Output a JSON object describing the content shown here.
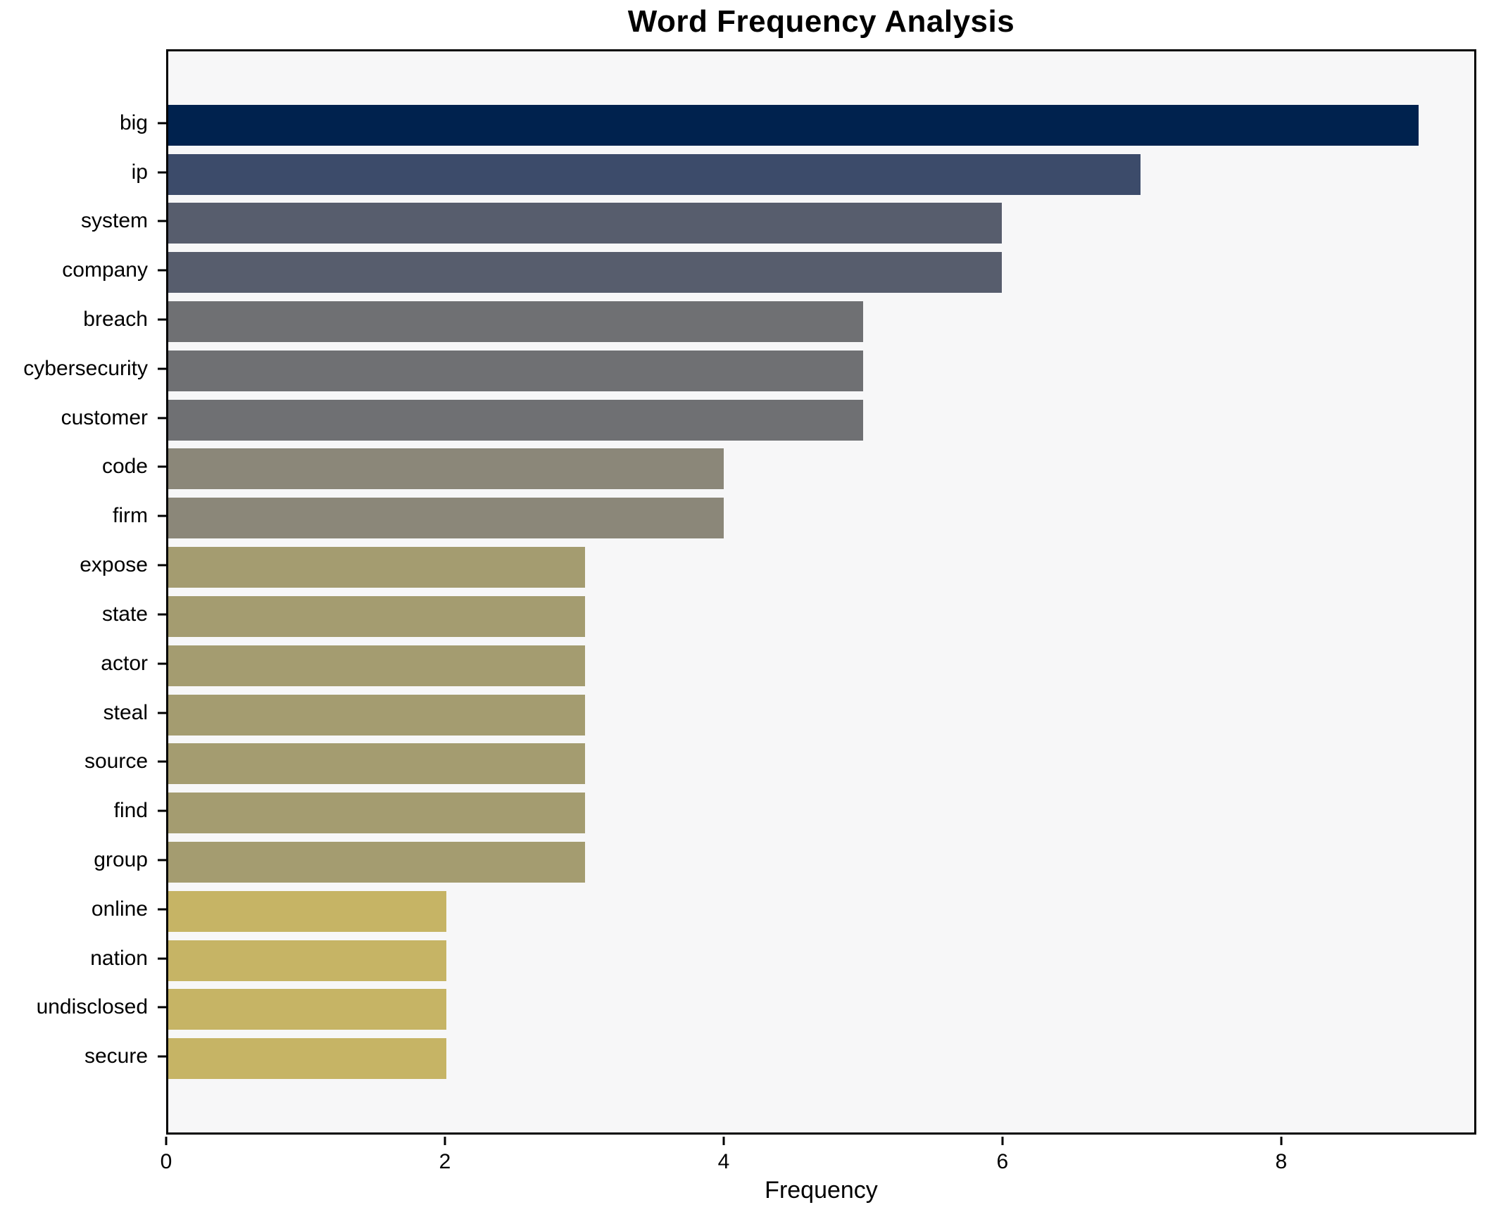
{
  "figure": {
    "title": "Word Frequency Analysis",
    "background": "#ffffff",
    "plot_background": "#f7f7f8",
    "spine_color": "#000000"
  },
  "chart_data": {
    "type": "bar",
    "orientation": "horizontal",
    "title": "Word Frequency Analysis",
    "xlabel": "Frequency",
    "ylabel": "",
    "categories": [
      "big",
      "ip",
      "system",
      "company",
      "breach",
      "cybersecurity",
      "customer",
      "code",
      "firm",
      "expose",
      "state",
      "actor",
      "steal",
      "source",
      "find",
      "group",
      "online",
      "nation",
      "undisclosed",
      "secure"
    ],
    "values": [
      9,
      7,
      6,
      6,
      5,
      5,
      5,
      4,
      4,
      3,
      3,
      3,
      3,
      3,
      3,
      3,
      2,
      2,
      2,
      2
    ],
    "bar_colors": [
      "#00224e",
      "#3c4b6a",
      "#575d6d",
      "#575d6d",
      "#6f7073",
      "#6f7073",
      "#6f7073",
      "#8b8779",
      "#8b8779",
      "#a49c70",
      "#a49c70",
      "#a49c70",
      "#a49c70",
      "#a49c70",
      "#a49c70",
      "#a49c70",
      "#c6b465",
      "#c6b465",
      "#c6b465",
      "#c6b465"
    ],
    "xlim": [
      0,
      9.4
    ],
    "xticks": [
      0,
      2,
      4,
      6,
      8
    ],
    "grid": false,
    "legend": null
  }
}
